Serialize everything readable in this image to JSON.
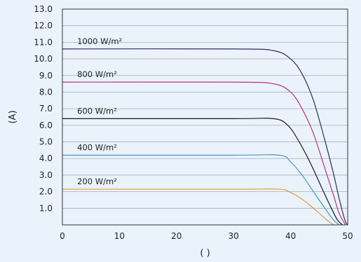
{
  "chart_data": {
    "type": "line",
    "xlabel": "( )",
    "ylabel": "(A)",
    "xlim": [
      0,
      50
    ],
    "ylim": [
      0,
      13
    ],
    "xticks": [
      0,
      10,
      20,
      30,
      40,
      50
    ],
    "yticks": [
      1.0,
      2.0,
      3.0,
      4.0,
      5.0,
      6.0,
      7.0,
      8.0,
      9.0,
      10.0,
      11.0,
      12.0,
      13.0
    ],
    "ytick_labels": [
      "1.0",
      "2.0",
      "3.0",
      "4.0",
      "5.0",
      "6.0",
      "7.0",
      "8.0",
      "9.0",
      "10.0",
      "11.0",
      "12.0",
      "13.0"
    ],
    "grid": "horizontal",
    "series": [
      {
        "name": "1000 W/m²",
        "color": "#2e2a5e",
        "x": [
          0,
          30,
          37,
          40,
          42,
          44,
          46,
          47.5,
          48.5,
          49.5,
          50
        ],
        "y": [
          10.6,
          10.6,
          10.5,
          10.0,
          9.1,
          7.5,
          5.1,
          3.1,
          1.6,
          0.3,
          0
        ]
      },
      {
        "name": "800 W/m²",
        "color": "#c0336e",
        "x": [
          0,
          30,
          37,
          40,
          42,
          44,
          46,
          47.5,
          48.5,
          49.6
        ],
        "y": [
          8.6,
          8.6,
          8.5,
          8.0,
          7.0,
          5.5,
          3.4,
          1.8,
          0.7,
          0
        ]
      },
      {
        "name": "600 W/m²",
        "color": "#1a1a1a",
        "x": [
          0,
          30,
          37,
          39.5,
          41.5,
          43.5,
          45.5,
          47,
          48.2,
          49.1
        ],
        "y": [
          6.4,
          6.4,
          6.4,
          6.0,
          5.0,
          3.7,
          2.2,
          1.1,
          0.3,
          0
        ]
      },
      {
        "name": "400 W/m²",
        "color": "#4a96c4",
        "x": [
          0,
          30,
          38,
          40,
          42,
          44,
          46,
          47.5,
          48.5
        ],
        "y": [
          4.2,
          4.2,
          4.2,
          3.8,
          3.0,
          2.0,
          1.0,
          0.3,
          0
        ]
      },
      {
        "name": "200 W/m²",
        "color": "#e29a3c",
        "x": [
          0,
          30,
          38,
          40,
          42,
          44,
          45.5,
          46.5,
          47.5
        ],
        "y": [
          2.15,
          2.15,
          2.15,
          1.95,
          1.55,
          1.0,
          0.55,
          0.25,
          0
        ]
      }
    ]
  }
}
